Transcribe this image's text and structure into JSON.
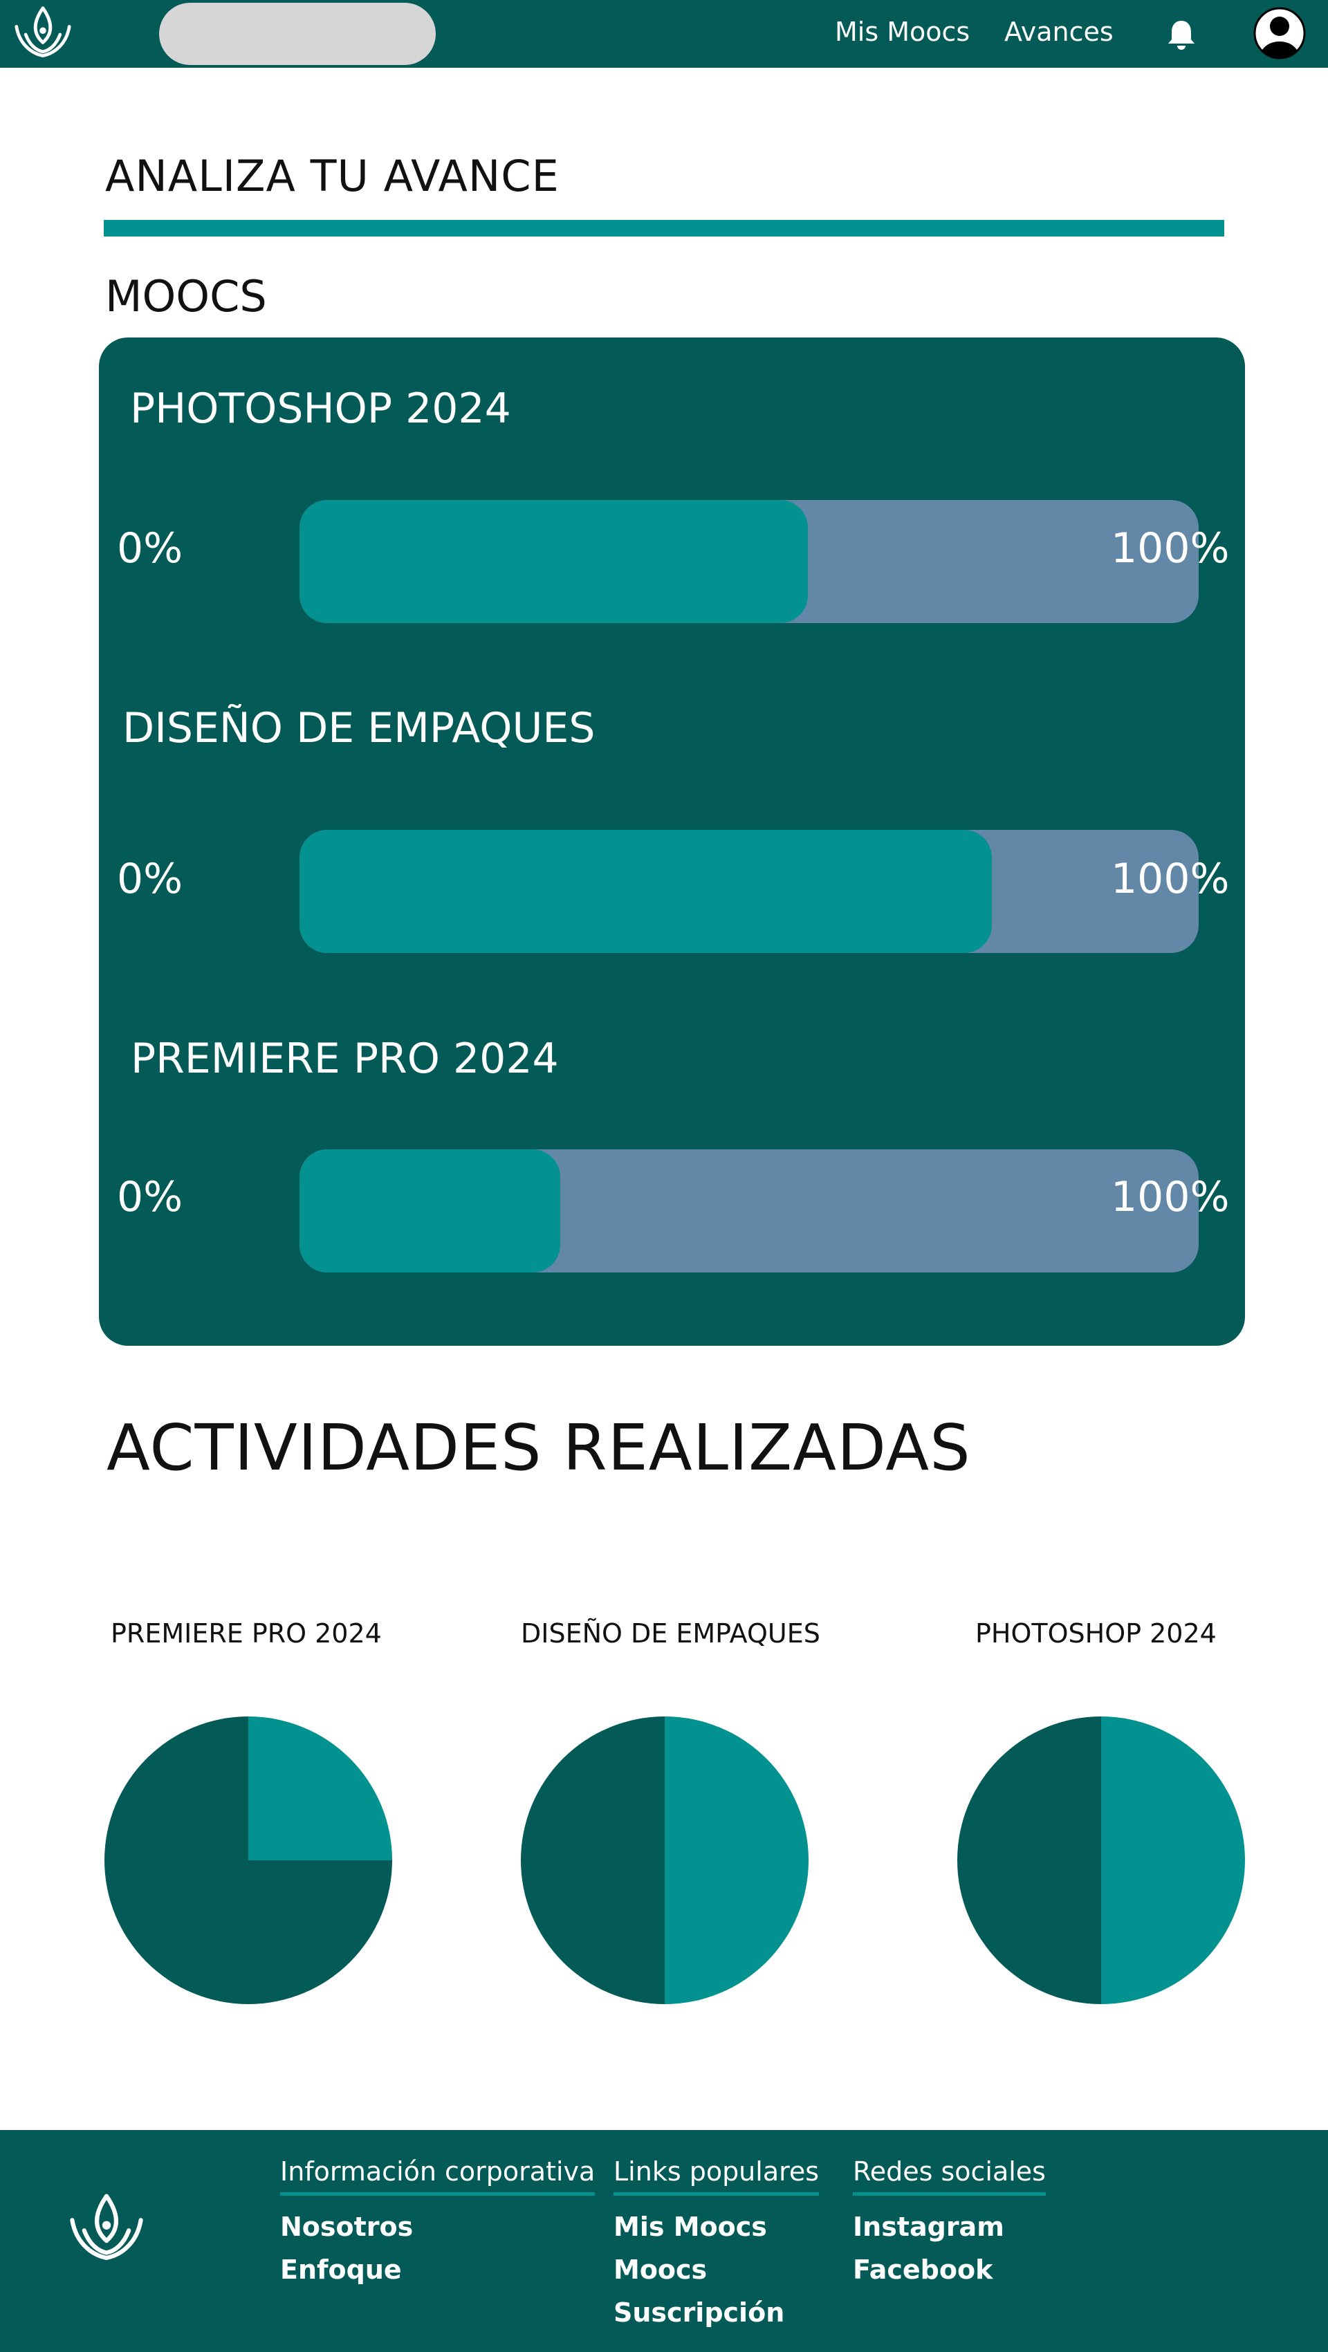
{
  "header": {
    "search": {
      "value": "",
      "placeholder": ""
    },
    "nav": [
      {
        "label": "Mis Moocs"
      },
      {
        "label": "Avances"
      }
    ],
    "icons": {
      "logo": "leaf-logo",
      "notifications": "bell-icon",
      "profile": "user-avatar-icon"
    }
  },
  "analysis": {
    "title": "ANALIZA TU AVANCE",
    "section_label": "MOOCS",
    "courses": [
      {
        "name": "PHOTOSHOP 2024",
        "min_label": "0%",
        "max_label": "100%",
        "progress": 0.565
      },
      {
        "name": "DISEÑO DE EMPAQUES",
        "min_label": "0%",
        "max_label": "100%",
        "progress": 0.77
      },
      {
        "name": "PREMIERE PRO 2024",
        "min_label": "0%",
        "max_label": "100%",
        "progress": 0.29
      }
    ]
  },
  "activities": {
    "title": "ACTIVIDADES REALIZADAS"
  },
  "chart_data": [
    {
      "type": "pie",
      "title": "PREMIERE PRO 2024",
      "slices": [
        {
          "name": "",
          "value": 25,
          "color": "#039290"
        },
        {
          "name": "",
          "value": 75,
          "color": "#045a56"
        }
      ]
    },
    {
      "type": "pie",
      "title": "DISEÑO DE EMPAQUES",
      "slices": [
        {
          "name": "",
          "value": 50,
          "color": "#039290"
        },
        {
          "name": "",
          "value": 50,
          "color": "#045a56"
        }
      ]
    },
    {
      "type": "pie",
      "title": "PHOTOSHOP 2024",
      "slices": [
        {
          "name": "",
          "value": 50,
          "color": "#039290"
        },
        {
          "name": "",
          "value": 50,
          "color": "#045a56"
        }
      ]
    }
  ],
  "footer": {
    "columns": [
      {
        "title": "Información corporativa",
        "links": [
          "Nosotros",
          "Enfoque"
        ]
      },
      {
        "title": "Links populares",
        "links": [
          "Mis Moocs",
          "Moocs",
          "Suscripción"
        ]
      },
      {
        "title": "Redes sociales",
        "links": [
          "Instagram",
          "Facebook"
        ]
      }
    ]
  },
  "colors": {
    "primary_dark": "#045a56",
    "accent_teal": "#039290",
    "track_blue": "#6387a7",
    "search_gray": "#d6d6d6"
  }
}
